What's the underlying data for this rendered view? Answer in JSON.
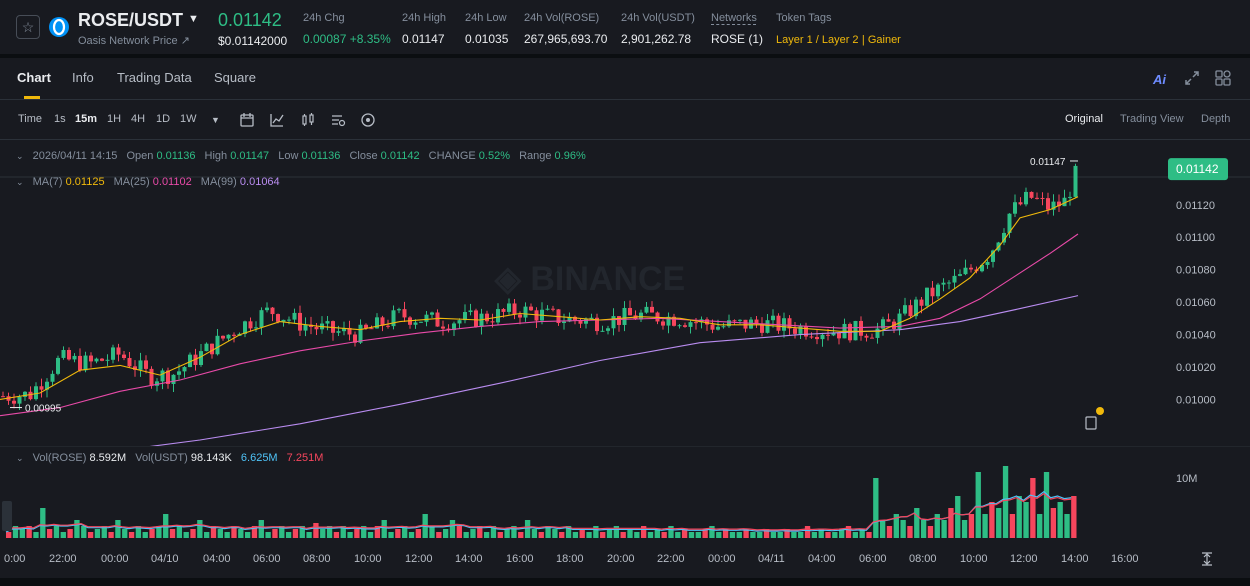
{
  "ticker": {
    "pair": "ROSE/USDT",
    "subtitle": "Oasis Network Price",
    "subtitle_arrow": "↗",
    "last_price": "0.01142",
    "last_price_usd": "$0.01142000",
    "stats": [
      {
        "label": "24h Chg",
        "value": "0.00087 +8.35%",
        "color": "green"
      },
      {
        "label": "24h High",
        "value": "0.01147"
      },
      {
        "label": "24h Low",
        "value": "0.01035"
      },
      {
        "label": "24h Vol(ROSE)",
        "value": "267,965,693.70"
      },
      {
        "label": "24h Vol(USDT)",
        "value": "2,901,262.78"
      },
      {
        "label": "Networks",
        "value": "ROSE (1)"
      }
    ],
    "token_tags_label": "Token Tags",
    "token_tags": [
      "Layer 1 / Layer 2",
      "Gainer"
    ]
  },
  "tabs": [
    "Chart",
    "Info",
    "Trading Data",
    "Square"
  ],
  "ai_label": "Ai",
  "toolbar": {
    "timeframes": [
      "Time",
      "1s",
      "15m",
      "1H",
      "4H",
      "1D",
      "1W"
    ],
    "active_timeframe": "15m",
    "views": [
      "Original",
      "Trading View",
      "Depth"
    ]
  },
  "ohlc": {
    "date": "2026/04/11 14:15",
    "open_label": "Open",
    "open": "0.01136",
    "high_label": "High",
    "high": "0.01147",
    "low_label": "Low",
    "low": "0.01136",
    "close_label": "Close",
    "close": "0.01142",
    "change_label": "CHANGE",
    "change": "0.52%",
    "range_label": "Range",
    "range": "0.96%"
  },
  "ma": {
    "ma7_label": "MA(7)",
    "ma7": "0.01125",
    "ma25_label": "MA(25)",
    "ma25": "0.01102",
    "ma99_label": "MA(99)",
    "ma99": "0.01064"
  },
  "volume": {
    "rose_label": "Vol(ROSE)",
    "rose": "8.592M",
    "usdt_label": "Vol(USDT)",
    "usdt": "98.143K",
    "ma_a": "6.625M",
    "ma_b": "7.251M",
    "axis_label": "10M"
  },
  "chart_data": {
    "type": "candlestick",
    "y_axis_ticks": [
      "0.01140",
      "0.01120",
      "0.01100",
      "0.01080",
      "0.01060",
      "0.01040",
      "0.01020",
      "0.01000"
    ],
    "y_tick_values": [
      0.0114,
      0.0112,
      0.011,
      0.0108,
      0.0106,
      0.0104,
      0.0102,
      0.01
    ],
    "ylim": [
      0.00975,
      0.01155
    ],
    "current_price_label": "0.01142",
    "current_price": 0.01142,
    "high_marker": "0.01147",
    "high_value": 0.01147,
    "low_marker": "0.00995",
    "low_value": 0.00995,
    "x_axis_labels": [
      "0:00",
      "22:00",
      "00:00",
      "04/10",
      "04:00",
      "06:00",
      "08:00",
      "10:00",
      "12:00",
      "14:00",
      "16:00",
      "18:00",
      "20:00",
      "22:00",
      "00:00",
      "04/11",
      "04:00",
      "06:00",
      "08:00",
      "10:00",
      "12:00",
      "14:00",
      "16:00"
    ],
    "price_path": [
      [
        0,
        0.01002
      ],
      [
        30,
        0.01003
      ],
      [
        60,
        0.01025
      ],
      [
        90,
        0.01022
      ],
      [
        120,
        0.01028
      ],
      [
        150,
        0.01014
      ],
      [
        175,
        0.01016
      ],
      [
        210,
        0.01032
      ],
      [
        240,
        0.01045
      ],
      [
        270,
        0.01055
      ],
      [
        300,
        0.01047
      ],
      [
        330,
        0.01042
      ],
      [
        360,
        0.0104
      ],
      [
        400,
        0.01052
      ],
      [
        440,
        0.01048
      ],
      [
        480,
        0.0105
      ],
      [
        520,
        0.01055
      ],
      [
        560,
        0.0105
      ],
      [
        600,
        0.01048
      ],
      [
        640,
        0.01052
      ],
      [
        680,
        0.0105
      ],
      [
        720,
        0.01045
      ],
      [
        760,
        0.01047
      ],
      [
        800,
        0.01044
      ],
      [
        840,
        0.01042
      ],
      [
        880,
        0.01043
      ],
      [
        900,
        0.0105
      ],
      [
        930,
        0.01065
      ],
      [
        960,
        0.01075
      ],
      [
        990,
        0.0109
      ],
      [
        1010,
        0.01115
      ],
      [
        1030,
        0.01125
      ],
      [
        1050,
        0.01118
      ],
      [
        1065,
        0.01122
      ],
      [
        1078,
        0.01142
      ]
    ],
    "ma7_path": [
      [
        0,
        0.01
      ],
      [
        40,
        0.01004
      ],
      [
        80,
        0.01018
      ],
      [
        120,
        0.01021
      ],
      [
        160,
        0.01015
      ],
      [
        200,
        0.01026
      ],
      [
        240,
        0.0104
      ],
      [
        280,
        0.01048
      ],
      [
        320,
        0.01045
      ],
      [
        360,
        0.01043
      ],
      [
        400,
        0.01048
      ],
      [
        440,
        0.0105
      ],
      [
        480,
        0.01049
      ],
      [
        520,
        0.01053
      ],
      [
        560,
        0.01051
      ],
      [
        600,
        0.01049
      ],
      [
        640,
        0.01051
      ],
      [
        680,
        0.0105
      ],
      [
        720,
        0.01046
      ],
      [
        760,
        0.01046
      ],
      [
        800,
        0.01044
      ],
      [
        840,
        0.01042
      ],
      [
        880,
        0.01042
      ],
      [
        910,
        0.0105
      ],
      [
        940,
        0.01062
      ],
      [
        970,
        0.01075
      ],
      [
        1000,
        0.01095
      ],
      [
        1020,
        0.01112
      ],
      [
        1050,
        0.01117
      ],
      [
        1078,
        0.01125
      ]
    ],
    "ma25_path": [
      [
        0,
        0.0099
      ],
      [
        60,
        0.00995
      ],
      [
        120,
        0.01005
      ],
      [
        180,
        0.01012
      ],
      [
        240,
        0.01022
      ],
      [
        300,
        0.0103
      ],
      [
        360,
        0.01036
      ],
      [
        420,
        0.01041
      ],
      [
        480,
        0.01045
      ],
      [
        540,
        0.01048
      ],
      [
        600,
        0.01049
      ],
      [
        660,
        0.0105
      ],
      [
        720,
        0.01048
      ],
      [
        780,
        0.01046
      ],
      [
        840,
        0.01044
      ],
      [
        900,
        0.01045
      ],
      [
        940,
        0.0105
      ],
      [
        980,
        0.01062
      ],
      [
        1020,
        0.01078
      ],
      [
        1050,
        0.0109
      ],
      [
        1078,
        0.01102
      ]
    ],
    "ma99_path": [
      [
        0,
        0.00962
      ],
      [
        100,
        0.00967
      ],
      [
        200,
        0.00975
      ],
      [
        300,
        0.00985
      ],
      [
        400,
        0.00997
      ],
      [
        500,
        0.0101
      ],
      [
        600,
        0.01024
      ],
      [
        700,
        0.01035
      ],
      [
        800,
        0.0104
      ],
      [
        900,
        0.01043
      ],
      [
        960,
        0.01048
      ],
      [
        1020,
        0.01056
      ],
      [
        1078,
        0.01064
      ]
    ],
    "volume_ylim": [
      0,
      14
    ],
    "volume_bars_millions": [
      1,
      2,
      1.5,
      2,
      1,
      5,
      1.5,
      2,
      1,
      1.5,
      3,
      2,
      1,
      1.5,
      2,
      1,
      3,
      1.5,
      1,
      2,
      1,
      1.5,
      2,
      4,
      1.5,
      2,
      1,
      1.5,
      3,
      1,
      2,
      1.5,
      1,
      2,
      1.5,
      1,
      2,
      3,
      1,
      1.5,
      2,
      1,
      1.5,
      2,
      1,
      2.5,
      1.5,
      2,
      1,
      2,
      1,
      1.5,
      2,
      1,
      2,
      3,
      1,
      1.5,
      2,
      1,
      1.5,
      4,
      2,
      1,
      1.5,
      3,
      2,
      1,
      1.5,
      2,
      1,
      2,
      1,
      1.5,
      2,
      1,
      3,
      1.5,
      1,
      2,
      1.5,
      1,
      2,
      1,
      1.5,
      1,
      2,
      1,
      1.5,
      2,
      1,
      1.5,
      1,
      2,
      1,
      1.5,
      1,
      2,
      1,
      1.5,
      1,
      1,
      1.5,
      2,
      1,
      1.5,
      1,
      1,
      1.5,
      1,
      1,
      1.5,
      1,
      1,
      1.5,
      1,
      1,
      2,
      1,
      1.5,
      1,
      1,
      1.5,
      2,
      1,
      1.5,
      1,
      10,
      3,
      2,
      4,
      3,
      2,
      5,
      3,
      2,
      4,
      3,
      5,
      7,
      3,
      4,
      11,
      4,
      6,
      5,
      12,
      4,
      7,
      6,
      10,
      4,
      11,
      5,
      6,
      4,
      7
    ]
  }
}
